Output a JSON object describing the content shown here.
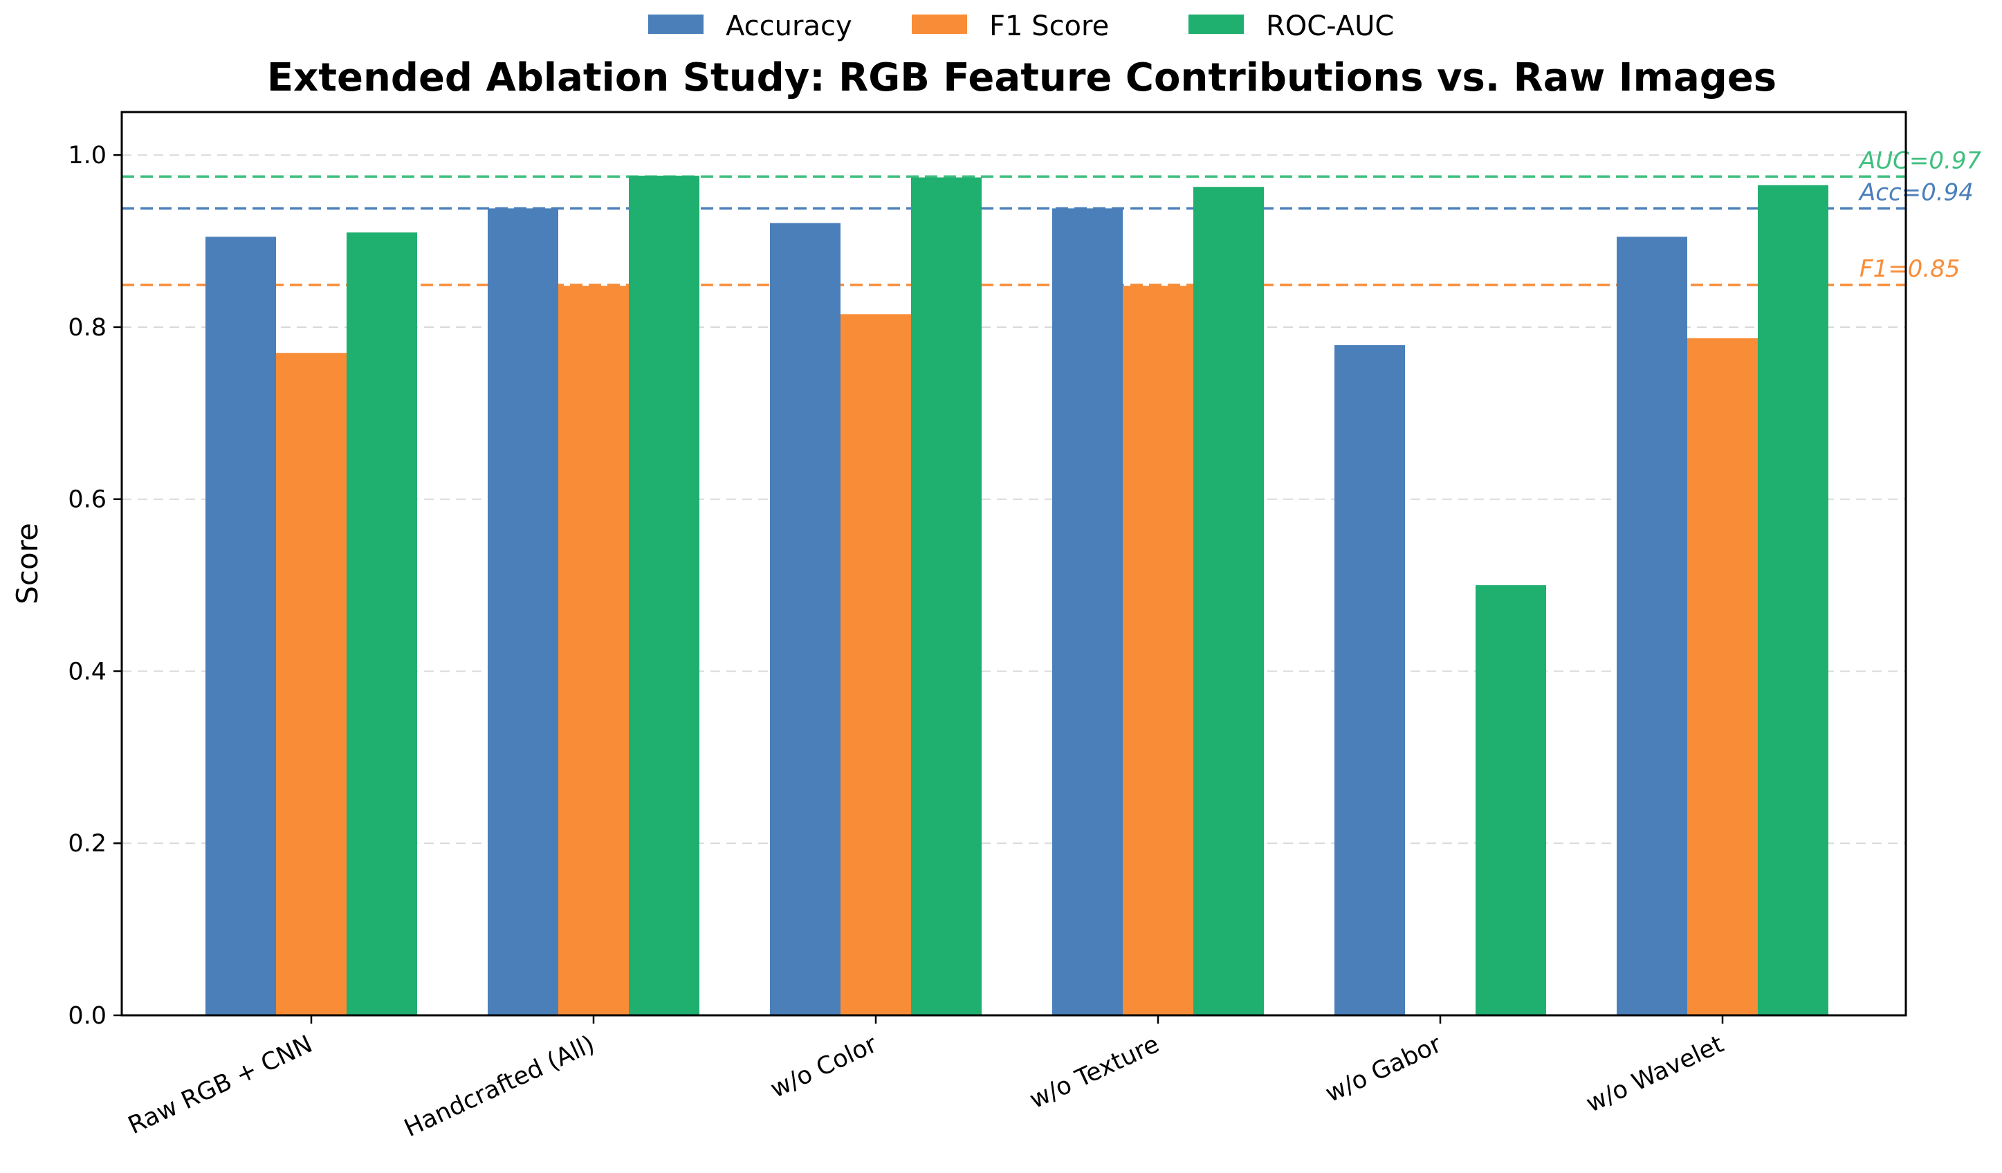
{
  "chart_data": {
    "type": "bar",
    "title": "Extended Ablation Study: RGB Feature Contributions vs. Raw Images",
    "xlabel": "",
    "ylabel": "Score",
    "ylim": [
      0,
      1.05
    ],
    "yticks": [
      "0.0",
      "0.2",
      "0.4",
      "0.6",
      "0.8",
      "1.0"
    ],
    "ytick_values": [
      0,
      0.2,
      0.4,
      0.6,
      0.8,
      1.0
    ],
    "grid": "horizontal dashed",
    "legend_position": "top-center",
    "categories": [
      "Raw RGB + CNN",
      "Handcrafted (All)",
      "w/o Color",
      "w/o Texture",
      "w/o Gabor",
      "w/o Wavelet"
    ],
    "series": [
      {
        "name": "Accuracy",
        "color": "#4a7fba",
        "values": [
          0.905,
          0.938,
          0.921,
          0.938,
          0.779,
          0.905
        ]
      },
      {
        "name": "F1 Score",
        "color": "#f98c36",
        "values": [
          0.77,
          0.848,
          0.815,
          0.848,
          0.0,
          0.787
        ]
      },
      {
        "name": "ROC-AUC",
        "color": "#1faf6f",
        "values": [
          0.91,
          0.976,
          0.974,
          0.963,
          0.5,
          0.965
        ]
      }
    ],
    "reference_lines": [
      {
        "label": "AUC=0.97",
        "value": 0.975,
        "color": "#3fbf7f"
      },
      {
        "label": "Acc=0.94",
        "value": 0.938,
        "color": "#4a7fba"
      },
      {
        "label": "F1=0.85",
        "value": 0.849,
        "color": "#f98c36"
      }
    ]
  }
}
